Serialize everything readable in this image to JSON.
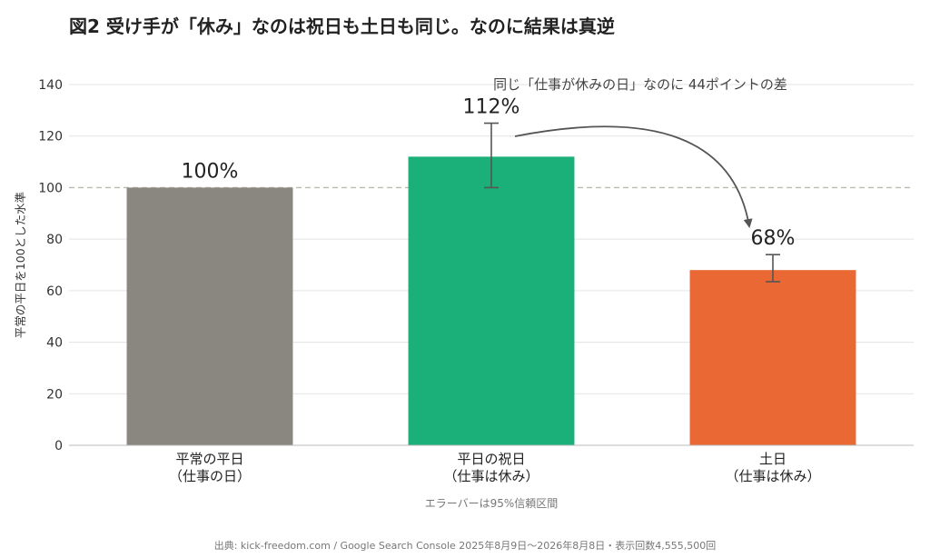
{
  "title": "図2 受け手が「休み」なのは祝日も土日も同じ。なのに結果は真逆",
  "source": "出典: kick-freedom.com / Google Search Console 2025年8月9日〜2026年8月8日・表示回数4,555,500回",
  "chart_data": {
    "type": "bar",
    "title": "図2 受け手が「休み」なのは祝日も土日も同じ。なのに結果は真逆",
    "ylabel": "平常の平日を100とした水準",
    "xlabel": "",
    "ylim": [
      0,
      140
    ],
    "yticks": [
      0,
      20,
      40,
      60,
      80,
      100,
      120,
      140
    ],
    "grid": true,
    "reference_line": 100,
    "categories": [
      [
        "平常の平日",
        "（仕事の日）"
      ],
      [
        "平日の祝日",
        "（仕事は休み）"
      ],
      [
        "土日",
        "（仕事は休み）"
      ]
    ],
    "values": [
      100,
      112,
      68
    ],
    "value_labels": [
      "100%",
      "112%",
      "68%"
    ],
    "error_bars": [
      null,
      [
        100,
        125
      ],
      [
        63.5,
        74
      ]
    ],
    "colors": [
      "#8a8780",
      "#1bb07a",
      "#e96834"
    ],
    "annotation": "同じ「仕事が休みの日」なのに 44ポイントの差",
    "footnote": "エラーバーは95%信頼区間"
  }
}
